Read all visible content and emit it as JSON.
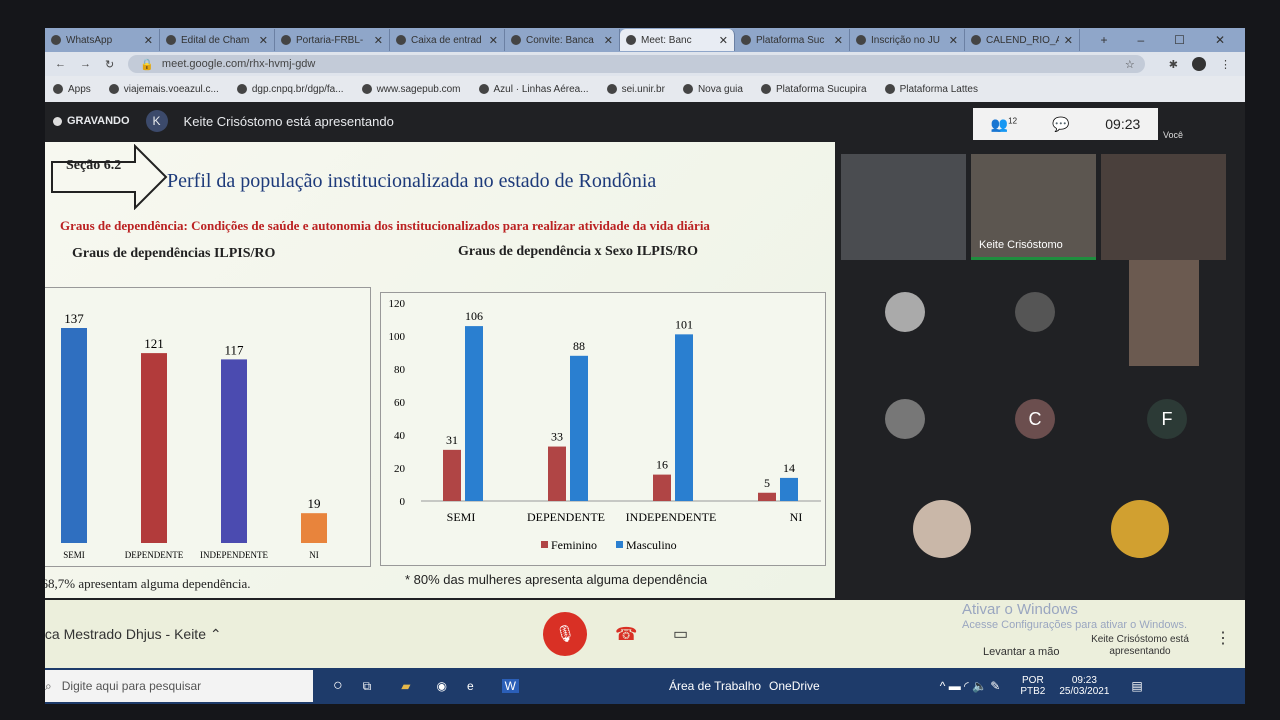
{
  "browser": {
    "tabs": [
      {
        "label": "WhatsApp",
        "active": false
      },
      {
        "label": "Edital de Cham",
        "active": false
      },
      {
        "label": "Portaria-FRBL-",
        "active": false
      },
      {
        "label": "Caixa de entrad",
        "active": false
      },
      {
        "label": "Convite: Banca",
        "active": false
      },
      {
        "label": "Meet: Banc",
        "active": true
      },
      {
        "label": "Plataforma Suc",
        "active": false
      },
      {
        "label": "Inscrição no JU",
        "active": false
      },
      {
        "label": "CALEND_RIO_A",
        "active": false
      }
    ],
    "url": "meet.google.com/rhx-hvmj-gdw",
    "bookmarks": [
      "Apps",
      "viajemais.voeazul.c...",
      "dgp.cnpq.br/dgp/fa...",
      "www.sagepub.com",
      "Azul · Linhas Aérea...",
      "sei.unir.br",
      "Nova guia",
      "Plataforma Sucupira",
      "Plataforma Lattes"
    ]
  },
  "meet": {
    "recording": "GRAVANDO",
    "presenter_initial": "K",
    "presenting_text": "Keite Crisóstomo está apresentando",
    "participants_count": "12",
    "time": "09:23",
    "self_label": "Você",
    "tile_name": "Keite Crisóstomo",
    "avatars": [
      "C",
      "F"
    ],
    "meeting_name": "Banca Mestrado Dhjus - Keite",
    "raise_hand": "Levantar a mão",
    "presenting_btn": "Keite Crisóstomo está apresentando",
    "watermark_title": "Ativar o Windows",
    "watermark_sub": "Acesse Configurações para ativar o Windows."
  },
  "slide": {
    "section": "Seção 6.2",
    "title": "Perfil da população institucionalizada no estado de Rondônia",
    "subtitle": "Graus de dependência: Condições de saúde e autonomia dos institucionalizados para realizar atividade da vida diária",
    "note_left": "*68,7% apresentam alguma dependência.",
    "note_right": "* 80% das mulheres apresenta alguma dependência"
  },
  "chart_data": [
    {
      "type": "bar",
      "title": "Graus de dependências ILPIS/RO",
      "categories": [
        "SEMI",
        "DEPENDENTE",
        "INDEPENDENTE",
        "NI"
      ],
      "values": [
        137,
        121,
        117,
        19
      ],
      "colors": [
        "#2f6fc0",
        "#b23b3b",
        "#4b4bb0",
        "#e8843c"
      ]
    },
    {
      "type": "bar",
      "title": "Graus de dependência x Sexo ILPIS/RO",
      "categories": [
        "SEMI",
        "DEPENDENTE",
        "INDEPENDENTE",
        "NI"
      ],
      "ylim": [
        0,
        120
      ],
      "yticks": [
        0,
        20,
        40,
        60,
        80,
        100,
        120
      ],
      "legend": "bottom",
      "series": [
        {
          "name": "Feminino",
          "values": [
            31,
            33,
            16,
            5
          ],
          "color": "#b04545"
        },
        {
          "name": "Masculino",
          "values": [
            106,
            88,
            101,
            14
          ],
          "color": "#2a7fd0"
        }
      ]
    }
  ],
  "taskbar": {
    "search_placeholder": "Digite aqui para pesquisar",
    "desktop": "Área de Trabalho",
    "onedrive": "OneDrive",
    "lang1": "POR",
    "lang2": "PTB2",
    "time": "09:23",
    "date": "25/03/2021"
  }
}
